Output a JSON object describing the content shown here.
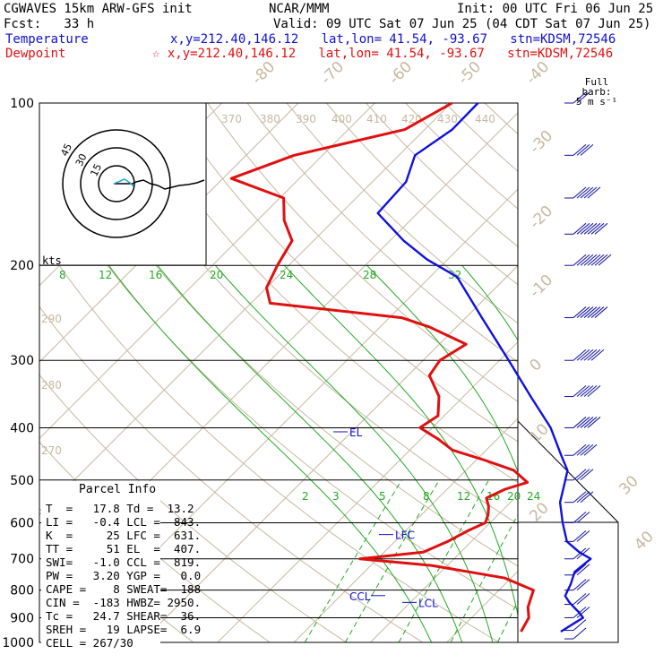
{
  "header": {
    "left1": "CGWAVES 15km ARW-GFS init",
    "center1": "NCAR/MMM",
    "right1": "Init: 00 UTC Fri 06 Jun 25",
    "left2": "Fcst:   33 h",
    "right2": "Valid: 09 UTC Sat 07 Jun 25 (04 CDT Sat 07 Jun 25)",
    "temp_label": "Temperature",
    "temp_loc": "x,y=212.40,146.12   lat,lon= 41.54, -93.67   stn=KDSM,72546",
    "dew_label": "Dewpoint",
    "dew_loc": "☆ x,y=212.40,146.12   lat,lon= 41.54, -93.67   stn=KDSM,72546"
  },
  "barb_legend": {
    "line1": "Full barb:",
    "line2": "5 m s⁻¹"
  },
  "hodograph": {
    "unit": "kts",
    "ring_labels": [
      "15",
      "30",
      "45"
    ]
  },
  "parcel_info": {
    "title": "Parcel Info",
    "rows": [
      "T  =   17.8 Td =  13.2",
      "LI =   -0.4 LCL =  843.",
      "K  =     25 LFC =  631.",
      "TT =     51 EL  =  407.",
      "SWI=   -1.0 CCL =  819.",
      "PW =   3.20 YGP =   0.0",
      "CAPE =    8 SWEAT=  188",
      "CIN =  -183 HWBZ= 2950.",
      "Tc =   24.7 SHEAR=  36.",
      "SREH =   19 LAPSE=  6.9",
      "CELL = 267/30"
    ]
  },
  "chart_data": {
    "type": "line",
    "title": "",
    "y_axis": {
      "label": "",
      "scale": "log",
      "ticks": [
        100,
        200,
        300,
        400,
        500,
        600,
        700,
        800,
        900,
        1000
      ]
    },
    "isotherm_labels": [
      "-80",
      "-70",
      "-60",
      "-50",
      "-40",
      "-30",
      "-20",
      "-10",
      "0",
      "10",
      "20",
      "30",
      "40"
    ],
    "theta_labels": [
      "370",
      "380",
      "390",
      "400",
      "410",
      "420",
      "430",
      "440",
      "290",
      "280",
      "270"
    ],
    "theta_e_labels": [
      "8",
      "12",
      "16",
      "20",
      "24",
      "28",
      "32"
    ],
    "mixing_ratio_labels": [
      "2",
      "3",
      "5",
      "8",
      "12",
      "16",
      "20",
      "24"
    ],
    "parcel_levels": [
      {
        "name": "EL",
        "p": 407
      },
      {
        "name": "LFC",
        "p": 631
      },
      {
        "name": "CCL",
        "p": 819
      },
      {
        "name": "LCL",
        "p": 843
      }
    ],
    "series": [
      {
        "name": "Temperature",
        "color": "#1010e0",
        "p": [
          955,
          920,
          900,
          880,
          860,
          843,
          820,
          780,
          740,
          700,
          680,
          650,
          600,
          550,
          505,
          480,
          450,
          400,
          350,
          300,
          250,
          210,
          195,
          180,
          160,
          140,
          125,
          112,
          100
        ],
        "t": [
          23.5,
          24.2,
          24.6,
          23.4,
          22.0,
          20.8,
          19.4,
          18.6,
          17.5,
          17.9,
          15.5,
          12.5,
          9.5,
          6.5,
          4.5,
          3.3,
          0.5,
          -4.5,
          -11.2,
          -18.8,
          -27.9,
          -36.5,
          -42.7,
          -48.2,
          -55.2,
          -55.6,
          -57.9,
          -56.4,
          -56.5
        ]
      },
      {
        "name": "Dewpoint",
        "color": "#e01010",
        "p": [
          955,
          900,
          860,
          800,
          760,
          720,
          700,
          680,
          650,
          620,
          600,
          580,
          560,
          540,
          520,
          505,
          480,
          460,
          440,
          420,
          400,
          380,
          350,
          320,
          300,
          280,
          260,
          250,
          235,
          220,
          200,
          180,
          165,
          150,
          138,
          125,
          112,
          100
        ],
        "t": [
          18.3,
          17.5,
          16.0,
          14.5,
          9.2,
          -2.1,
          -12.3,
          -4.9,
          -3.1,
          -1.8,
          -0.6,
          -1.3,
          -2.3,
          -3.7,
          -2.4,
          -0.4,
          -3.7,
          -8.7,
          -14.4,
          -17.7,
          -21.6,
          -20.8,
          -23.2,
          -27.2,
          -27.8,
          -26.5,
          -33.6,
          -38.4,
          -57.5,
          -60.0,
          -61.5,
          -62.8,
          -66.5,
          -69.5,
          -78.9,
          -73.7,
          -62.6,
          -59.9
        ]
      }
    ],
    "wind_barbs": [
      {
        "p": 985,
        "speed_ms": 5,
        "dir": 170
      },
      {
        "p": 950,
        "speed_ms": 7,
        "dir": 190
      },
      {
        "p": 900,
        "speed_ms": 10,
        "dir": 200
      },
      {
        "p": 850,
        "speed_ms": 10,
        "dir": 220
      },
      {
        "p": 800,
        "speed_ms": 10,
        "dir": 250
      },
      {
        "p": 750,
        "speed_ms": 10,
        "dir": 260
      },
      {
        "p": 700,
        "speed_ms": 10,
        "dir": 270
      },
      {
        "p": 650,
        "speed_ms": 10,
        "dir": 270
      },
      {
        "p": 600,
        "speed_ms": 10,
        "dir": 270
      },
      {
        "p": 550,
        "speed_ms": 15,
        "dir": 270
      },
      {
        "p": 500,
        "speed_ms": 15,
        "dir": 280
      },
      {
        "p": 450,
        "speed_ms": 20,
        "dir": 280
      },
      {
        "p": 400,
        "speed_ms": 25,
        "dir": 280
      },
      {
        "p": 350,
        "speed_ms": 25,
        "dir": 280
      },
      {
        "p": 300,
        "speed_ms": 30,
        "dir": 270
      },
      {
        "p": 250,
        "speed_ms": 35,
        "dir": 270
      },
      {
        "p": 200,
        "speed_ms": 40,
        "dir": 270
      },
      {
        "p": 175,
        "speed_ms": 35,
        "dir": 270
      },
      {
        "p": 150,
        "speed_ms": 25,
        "dir": 270
      },
      {
        "p": 125,
        "speed_ms": 15,
        "dir": 270
      },
      {
        "p": 100,
        "speed_ms": 10,
        "dir": 270
      }
    ]
  }
}
